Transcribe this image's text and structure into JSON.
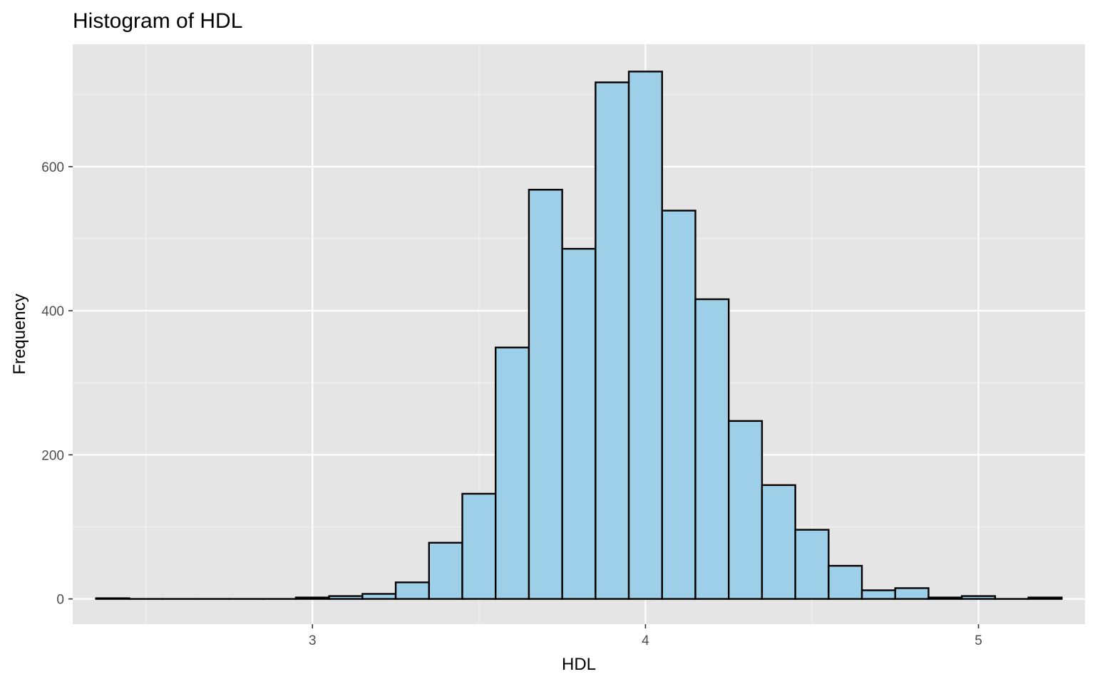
{
  "chart_data": {
    "type": "bar",
    "subtype": "histogram",
    "title": "Histogram of HDL",
    "xlabel": "HDL",
    "ylabel": "Frequency",
    "xlim": [
      2.28,
      5.32
    ],
    "ylim": [
      -35,
      770
    ],
    "x_ticks": [
      3,
      4,
      5
    ],
    "x_tick_labels": [
      "3",
      "4",
      "5"
    ],
    "y_ticks": [
      0,
      200,
      400,
      600
    ],
    "y_tick_labels": [
      "0",
      "200",
      "400",
      "600"
    ],
    "bin_width": 0.1,
    "bins": [
      {
        "x0": 2.35,
        "x1": 2.45,
        "count": 1
      },
      {
        "x0": 2.45,
        "x1": 2.55,
        "count": 0
      },
      {
        "x0": 2.55,
        "x1": 2.65,
        "count": 0
      },
      {
        "x0": 2.65,
        "x1": 2.75,
        "count": 0
      },
      {
        "x0": 2.75,
        "x1": 2.85,
        "count": 0
      },
      {
        "x0": 2.85,
        "x1": 2.95,
        "count": 0
      },
      {
        "x0": 2.95,
        "x1": 3.05,
        "count": 2
      },
      {
        "x0": 3.05,
        "x1": 3.15,
        "count": 4
      },
      {
        "x0": 3.15,
        "x1": 3.25,
        "count": 7
      },
      {
        "x0": 3.25,
        "x1": 3.35,
        "count": 23
      },
      {
        "x0": 3.35,
        "x1": 3.45,
        "count": 78
      },
      {
        "x0": 3.45,
        "x1": 3.55,
        "count": 146
      },
      {
        "x0": 3.55,
        "x1": 3.65,
        "count": 349
      },
      {
        "x0": 3.65,
        "x1": 3.75,
        "count": 568
      },
      {
        "x0": 3.75,
        "x1": 3.85,
        "count": 486
      },
      {
        "x0": 3.85,
        "x1": 3.95,
        "count": 717
      },
      {
        "x0": 3.95,
        "x1": 4.05,
        "count": 732
      },
      {
        "x0": 4.05,
        "x1": 4.15,
        "count": 539
      },
      {
        "x0": 4.15,
        "x1": 4.25,
        "count": 416
      },
      {
        "x0": 4.25,
        "x1": 4.35,
        "count": 247
      },
      {
        "x0": 4.35,
        "x1": 4.45,
        "count": 158
      },
      {
        "x0": 4.45,
        "x1": 4.55,
        "count": 96
      },
      {
        "x0": 4.55,
        "x1": 4.65,
        "count": 46
      },
      {
        "x0": 4.65,
        "x1": 4.75,
        "count": 12
      },
      {
        "x0": 4.75,
        "x1": 4.85,
        "count": 15
      },
      {
        "x0": 4.85,
        "x1": 4.95,
        "count": 2
      },
      {
        "x0": 4.95,
        "x1": 5.05,
        "count": 4
      },
      {
        "x0": 5.05,
        "x1": 5.15,
        "count": 0
      },
      {
        "x0": 5.15,
        "x1": 5.25,
        "count": 2
      }
    ],
    "grid": true,
    "legend": "none",
    "colors": {
      "bar_fill": "#9ecfe8",
      "bar_stroke": "#000000",
      "panel_background": "#e5e5e5",
      "grid_major": "#ffffff",
      "grid_minor": "#f2f2f2",
      "tick_text": "#4d4d4d"
    }
  }
}
